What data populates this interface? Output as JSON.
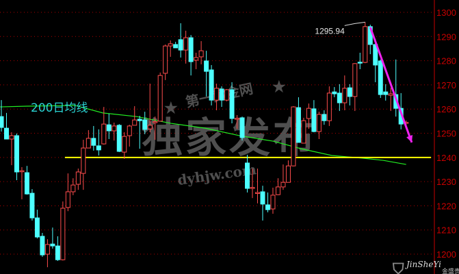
{
  "chart_data": {
    "type": "candlestick",
    "title": "",
    "xlabel": "",
    "ylabel": "",
    "ylim": [
      1191.8,
      1305.1
    ],
    "y_ticks": [
      1300,
      1290,
      1280,
      1270,
      1260,
      1250,
      1240,
      1230,
      1220,
      1210,
      1200
    ],
    "grid": "horizontal dotted",
    "colors": {
      "up": "#ff4d4d",
      "down": "#4dffff",
      "background": "#000000",
      "axis": "#c80000",
      "ma": "#22ee22",
      "support": "#ffff00",
      "arrow": "#ee22ee"
    },
    "candles_ohlc": [
      [
        1256.9,
        1263.7,
        1250.7,
        1252.4
      ],
      [
        1252.1,
        1258.4,
        1247.6,
        1247.6
      ],
      [
        1247.6,
        1250.4,
        1236.8,
        1249.0
      ],
      [
        1249.0,
        1249.9,
        1230.6,
        1234.0
      ],
      [
        1234.3,
        1236.0,
        1222.7,
        1234.5
      ],
      [
        1233.7,
        1236.5,
        1224.6,
        1224.9
      ],
      [
        1225.2,
        1226.9,
        1213.9,
        1215.0
      ],
      [
        1215.0,
        1218.4,
        1206.5,
        1207.1
      ],
      [
        1207.4,
        1208.8,
        1198.9,
        1199.7
      ],
      [
        1200.0,
        1206.2,
        1194.6,
        1204.0
      ],
      [
        1204.2,
        1211.0,
        1202.3,
        1203.4
      ],
      [
        1203.4,
        1207.4,
        1197.2,
        1197.7
      ],
      [
        1197.7,
        1221.8,
        1197.4,
        1219.0
      ],
      [
        1219.3,
        1233.4,
        1217.8,
        1225.8
      ],
      [
        1225.8,
        1231.4,
        1224.4,
        1228.6
      ],
      [
        1228.9,
        1235.4,
        1226.6,
        1234.0
      ],
      [
        1233.4,
        1247.3,
        1226.6,
        1243.9
      ],
      [
        1243.9,
        1251.3,
        1243.9,
        1247.9
      ],
      [
        1247.9,
        1253.0,
        1242.8,
        1245.0
      ],
      [
        1244.8,
        1251.6,
        1240.8,
        1243.1
      ],
      [
        1245.6,
        1260.9,
        1245.3,
        1253.8
      ],
      [
        1253.5,
        1258.1,
        1247.6,
        1251.0
      ],
      [
        1251.0,
        1254.4,
        1247.0,
        1253.0
      ],
      [
        1253.3,
        1253.8,
        1242.2,
        1242.5
      ],
      [
        1242.2,
        1250.4,
        1239.4,
        1248.7
      ],
      [
        1249.0,
        1253.5,
        1244.5,
        1253.0
      ],
      [
        1253.3,
        1261.2,
        1253.3,
        1255.5
      ],
      [
        1255.8,
        1257.2,
        1243.6,
        1255.2
      ],
      [
        1255.5,
        1258.9,
        1249.6,
        1251.6
      ],
      [
        1251.8,
        1270.5,
        1250.4,
        1253.3
      ],
      [
        1254.6,
        1256.9,
        1247.3,
        1254.8
      ],
      [
        1255.0,
        1275.1,
        1255.0,
        1273.9
      ],
      [
        1274.8,
        1286.7,
        1272.0,
        1286.1
      ],
      [
        1286.1,
        1288.4,
        1281.6,
        1287.0
      ],
      [
        1286.7,
        1287.8,
        1285.3,
        1285.3
      ],
      [
        1288.7,
        1295.5,
        1281.3,
        1284.4
      ],
      [
        1284.4,
        1292.4,
        1278.8,
        1289.5
      ],
      [
        1289.5,
        1290.6,
        1273.9,
        1279.6
      ],
      [
        1280.2,
        1283.3,
        1276.5,
        1281.3
      ],
      [
        1281.6,
        1288.1,
        1278.5,
        1284.1
      ],
      [
        1279.9,
        1284.1,
        1265.2,
        1275.6
      ],
      [
        1276.2,
        1278.2,
        1261.5,
        1263.7
      ],
      [
        1263.7,
        1270.5,
        1259.5,
        1268.6
      ],
      [
        1268.3,
        1269.4,
        1260.9,
        1263.7
      ],
      [
        1263.7,
        1268.3,
        1263.2,
        1268.0
      ],
      [
        1268.0,
        1271.1,
        1254.1,
        1256.1
      ],
      [
        1256.0,
        1257.5,
        1251.8,
        1256.2
      ],
      [
        1256.4,
        1256.9,
        1247.0,
        1248.2
      ],
      [
        1237.7,
        1241.1,
        1225.5,
        1227.2
      ],
      [
        1227.4,
        1235.4,
        1223.2,
        1227.6
      ],
      [
        1225.2,
        1235.4,
        1221.0,
        1225.5
      ],
      [
        1225.8,
        1228.3,
        1213.9,
        1220.7
      ],
      [
        1220.4,
        1225.5,
        1217.3,
        1218.4
      ],
      [
        1218.7,
        1227.5,
        1216.7,
        1224.4
      ],
      [
        1224.6,
        1231.4,
        1224.4,
        1227.8
      ],
      [
        1227.8,
        1237.1,
        1226.6,
        1229.7
      ],
      [
        1229.7,
        1238.8,
        1229.7,
        1236.5
      ],
      [
        1236.5,
        1261.2,
        1236.3,
        1260.9
      ],
      [
        1260.6,
        1264.9,
        1246.2,
        1246.2
      ],
      [
        1245.9,
        1256.4,
        1245.9,
        1255.2
      ],
      [
        1256.1,
        1262.3,
        1251.8,
        1260.3
      ],
      [
        1260.1,
        1263.7,
        1250.4,
        1250.7
      ],
      [
        1250.7,
        1258.9,
        1247.6,
        1257.8
      ],
      [
        1257.8,
        1259.5,
        1253.5,
        1255.2
      ],
      [
        1255.2,
        1269.4,
        1253.0,
        1266.6
      ],
      [
        1267.1,
        1269.1,
        1264.9,
        1266.3
      ],
      [
        1266.6,
        1270.3,
        1259.2,
        1262.6
      ],
      [
        1262.6,
        1273.9,
        1259.5,
        1268.6
      ],
      [
        1268.8,
        1270.3,
        1261.5,
        1265.2
      ],
      [
        1265.2,
        1279.0,
        1259.2,
        1278.8
      ],
      [
        1279.4,
        1283.3,
        1276.5,
        1279.2
      ],
      [
        1279.3,
        1295.94,
        1279.0,
        1294.1
      ],
      [
        1294.1,
        1294.9,
        1282.7,
        1286.7
      ],
      [
        1286.7,
        1289.0,
        1271.1,
        1278.2
      ],
      [
        1279.9,
        1280.5,
        1264.6,
        1266.0
      ],
      [
        1267.1,
        1270.3,
        1263.5,
        1266.0
      ],
      [
        1265.7,
        1268.8,
        1259.2,
        1266.3
      ],
      [
        1266.0,
        1280.5,
        1256.9,
        1260.3
      ],
      [
        1260.3,
        1266.6,
        1251.6,
        1253.8
      ],
      [
        1254.3,
        1255.3,
        1253.5,
        1254.5
      ]
    ],
    "ma200": {
      "label": "200日均线",
      "points": [
        [
          1,
          1260.9
        ],
        [
          6,
          1261.2
        ],
        [
          15.4,
          1261.5
        ],
        [
          20.8,
          1258.4
        ],
        [
          27.4,
          1256.9
        ],
        [
          34.1,
          1254.1
        ],
        [
          40.8,
          1252.1
        ],
        [
          47.5,
          1249.0
        ],
        [
          54.1,
          1246.7
        ],
        [
          59.5,
          1243.6
        ],
        [
          65.5,
          1240.8
        ],
        [
          71.5,
          1239.7
        ],
        [
          75.5,
          1238.8
        ],
        [
          80,
          1237.1
        ]
      ]
    },
    "support_line": {
      "level": 1240,
      "from_index": 13.4
    },
    "high_annotation": {
      "label": "1295.94",
      "index": 72,
      "value": 1295.94
    },
    "trend_arrow": {
      "from": [
        73,
        1293.8
      ],
      "to": [
        81.1,
        1246.2
      ]
    }
  },
  "watermark": {
    "site_name": "第一黄金网",
    "headline": "独家发布",
    "url": "dyhjw.com"
  },
  "logo": {
    "text": "JinSheYi",
    "subtext": "金盛贵"
  }
}
